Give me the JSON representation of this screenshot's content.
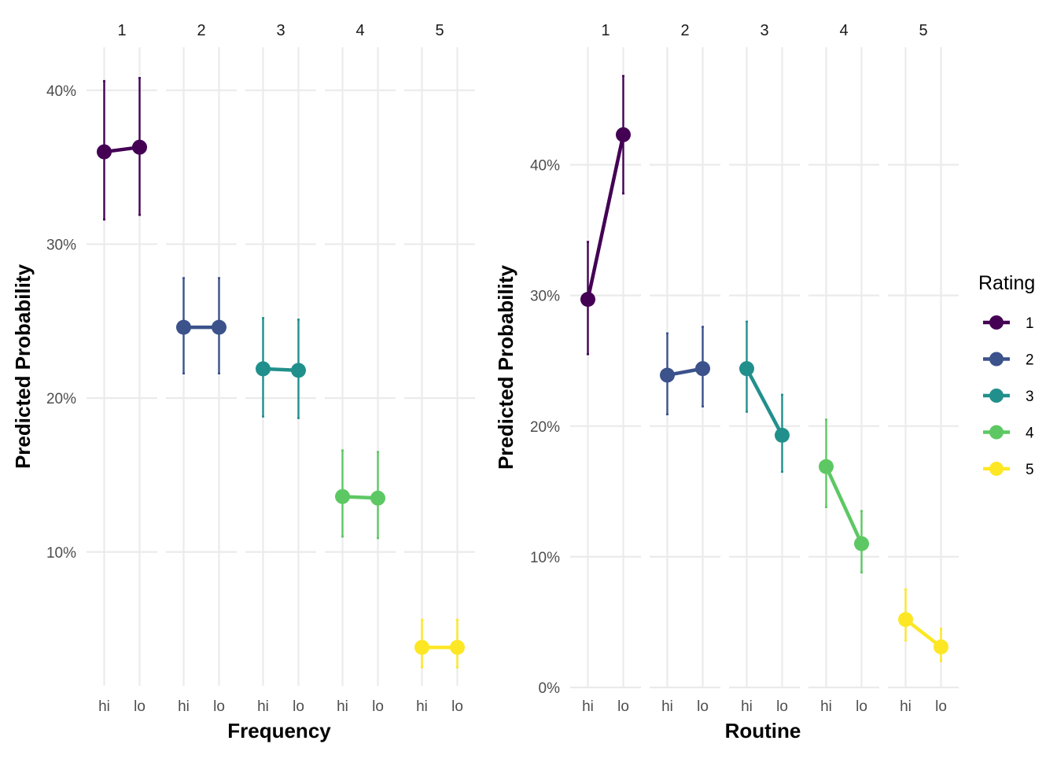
{
  "chart_data": [
    {
      "type": "line",
      "facet_by": "Rating",
      "xlabel": "Frequency",
      "ylabel": "Predicted Probability",
      "x": [
        "hi",
        "lo"
      ],
      "y_ticks": [
        0.1,
        0.2,
        0.3,
        0.4
      ],
      "y_tick_labels": [
        "10%",
        "20%",
        "30%",
        "40%"
      ],
      "ylim": [
        0.013,
        0.428
      ],
      "facets": [
        {
          "label": "1",
          "values": [
            0.36,
            0.363
          ],
          "lower": [
            0.316,
            0.319
          ],
          "upper": [
            0.406,
            0.408
          ]
        },
        {
          "label": "2",
          "values": [
            0.246,
            0.246
          ],
          "lower": [
            0.216,
            0.216
          ],
          "upper": [
            0.278,
            0.278
          ]
        },
        {
          "label": "3",
          "values": [
            0.219,
            0.218
          ],
          "lower": [
            0.188,
            0.187
          ],
          "upper": [
            0.252,
            0.251
          ]
        },
        {
          "label": "4",
          "values": [
            0.136,
            0.135
          ],
          "lower": [
            0.11,
            0.109
          ],
          "upper": [
            0.166,
            0.165
          ]
        },
        {
          "label": "5",
          "values": [
            0.038,
            0.038
          ],
          "lower": [
            0.025,
            0.025
          ],
          "upper": [
            0.056,
            0.056
          ]
        }
      ]
    },
    {
      "type": "line",
      "facet_by": "Rating",
      "xlabel": "Routine",
      "ylabel": "Predicted Probability",
      "x": [
        "hi",
        "lo"
      ],
      "y_ticks": [
        0.0,
        0.1,
        0.2,
        0.3,
        0.4
      ],
      "y_tick_labels": [
        "0%",
        "10%",
        "20%",
        "30%",
        "40%"
      ],
      "ylim": [
        0.0,
        0.49
      ],
      "facets": [
        {
          "label": "1",
          "values": [
            0.297,
            0.423
          ],
          "lower": [
            0.255,
            0.378
          ],
          "upper": [
            0.341,
            0.468
          ]
        },
        {
          "label": "2",
          "values": [
            0.239,
            0.244
          ],
          "lower": [
            0.209,
            0.215
          ],
          "upper": [
            0.271,
            0.276
          ]
        },
        {
          "label": "3",
          "values": [
            0.244,
            0.193
          ],
          "lower": [
            0.211,
            0.165
          ],
          "upper": [
            0.28,
            0.224
          ]
        },
        {
          "label": "4",
          "values": [
            0.169,
            0.11
          ],
          "lower": [
            0.138,
            0.088
          ],
          "upper": [
            0.205,
            0.135
          ]
        },
        {
          "label": "5",
          "values": [
            0.052,
            0.031
          ],
          "lower": [
            0.036,
            0.02
          ],
          "upper": [
            0.075,
            0.045
          ]
        }
      ]
    }
  ],
  "legend": {
    "title": "Rating",
    "position": "right",
    "items": [
      {
        "label": "1",
        "color": "#440154"
      },
      {
        "label": "2",
        "color": "#3B528B"
      },
      {
        "label": "3",
        "color": "#21908C"
      },
      {
        "label": "4",
        "color": "#5DC863"
      },
      {
        "label": "5",
        "color": "#FDE725"
      }
    ]
  },
  "grid": true
}
